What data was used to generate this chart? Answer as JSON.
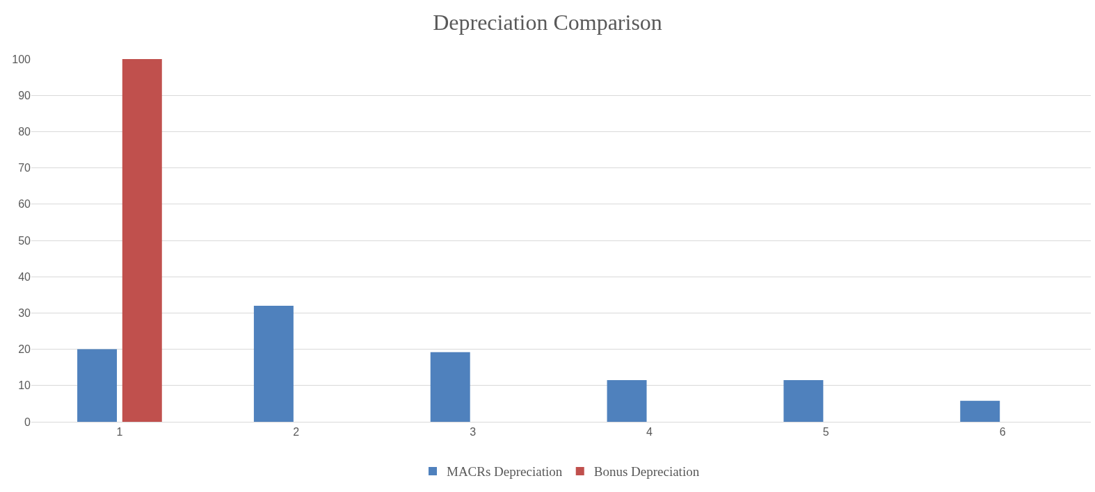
{
  "chart_data": {
    "type": "bar",
    "title": "Depreciation Comparison",
    "categories": [
      "1",
      "2",
      "3",
      "4",
      "5",
      "6"
    ],
    "series": [
      {
        "name": "MACRs Depreciation",
        "color": "#4f81bd",
        "values": [
          20,
          32,
          19.2,
          11.5,
          11.5,
          5.8
        ]
      },
      {
        "name": "Bonus Depreciation",
        "color": "#c0504d",
        "values": [
          100,
          0,
          0,
          0,
          0,
          0
        ]
      }
    ],
    "ylim": [
      0,
      100
    ],
    "yticks": [
      0,
      10,
      20,
      30,
      40,
      50,
      60,
      70,
      80,
      90,
      100
    ],
    "grid": "y",
    "legend": "bottom"
  }
}
